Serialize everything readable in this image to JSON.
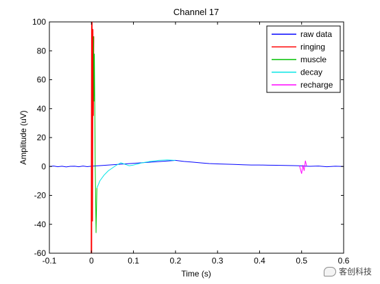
{
  "chart_data": {
    "type": "line",
    "title": "Channel 17",
    "xlabel": "Time (s)",
    "ylabel": "Amplitude (uV)",
    "xlim": [
      -0.1,
      0.6
    ],
    "ylim": [
      -60,
      100
    ],
    "x_ticks": [
      -0.1,
      0,
      0.1,
      0.2,
      0.3,
      0.4,
      0.5,
      0.6
    ],
    "x_tick_labels": [
      "-0.1",
      "0",
      "0.1",
      "0.2",
      "0.3",
      "0.4",
      "0.5",
      "0.6"
    ],
    "y_ticks": [
      -60,
      -40,
      -20,
      0,
      20,
      40,
      60,
      80,
      100
    ],
    "y_tick_labels": [
      "-60",
      "-40",
      "-20",
      "0",
      "20",
      "40",
      "60",
      "80",
      "100"
    ],
    "grid": false,
    "legend_position": "top-right",
    "series": [
      {
        "name": "raw data",
        "color": "#0000ff",
        "x": [
          -0.1,
          -0.09,
          -0.08,
          -0.07,
          -0.06,
          -0.05,
          -0.04,
          -0.03,
          -0.02,
          -0.01,
          0.0,
          0.2,
          0.22,
          0.24,
          0.26,
          0.28,
          0.3,
          0.32,
          0.34,
          0.36,
          0.38,
          0.4,
          0.42,
          0.44,
          0.46,
          0.48,
          0.495,
          0.512,
          0.52,
          0.54,
          0.56,
          0.58,
          0.6
        ],
        "y": [
          0,
          0.3,
          -0.2,
          0.2,
          -0.3,
          0.1,
          0.2,
          -0.2,
          0.3,
          -0.1,
          0.2,
          4.2,
          3.5,
          3.0,
          2.5,
          2.0,
          1.8,
          1.6,
          1.4,
          1.2,
          1.0,
          1.0,
          0.9,
          0.8,
          0.7,
          0.6,
          0.5,
          0.2,
          0.1,
          0.3,
          -0.2,
          0.2,
          0.0
        ]
      },
      {
        "name": "ringing",
        "color": "#ff0000",
        "x": [
          0.0,
          0.001,
          0.002,
          0.003,
          0.004,
          0.005
        ],
        "y": [
          -60,
          100,
          -38,
          95,
          35,
          90
        ]
      },
      {
        "name": "muscle",
        "color": "#00c000",
        "x": [
          0.005,
          0.006,
          0.007,
          0.008,
          0.009,
          0.01,
          0.011,
          0.012,
          0.013
        ],
        "y": [
          90,
          45,
          78,
          40,
          0,
          -20,
          -46,
          -30,
          -15
        ]
      },
      {
        "name": "decay",
        "color": "#00e5e5",
        "x": [
          0.013,
          0.02,
          0.03,
          0.04,
          0.05,
          0.06,
          0.07,
          0.08,
          0.09,
          0.1,
          0.12,
          0.14,
          0.16,
          0.18,
          0.2
        ],
        "y": [
          -15,
          -10,
          -6,
          -3,
          -1,
          1,
          2.5,
          1.5,
          0.5,
          1.0,
          2.5,
          3.5,
          4.2,
          4.5,
          4.2
        ]
      },
      {
        "name": "recharge",
        "color": "#ff00ff",
        "x": [
          0.495,
          0.5,
          0.503,
          0.506,
          0.509,
          0.512
        ],
        "y": [
          0.5,
          -5,
          1,
          -3,
          4,
          0.2
        ]
      }
    ]
  },
  "watermark": {
    "text": "客创科技",
    "icon": "chat-bubble-icon"
  }
}
